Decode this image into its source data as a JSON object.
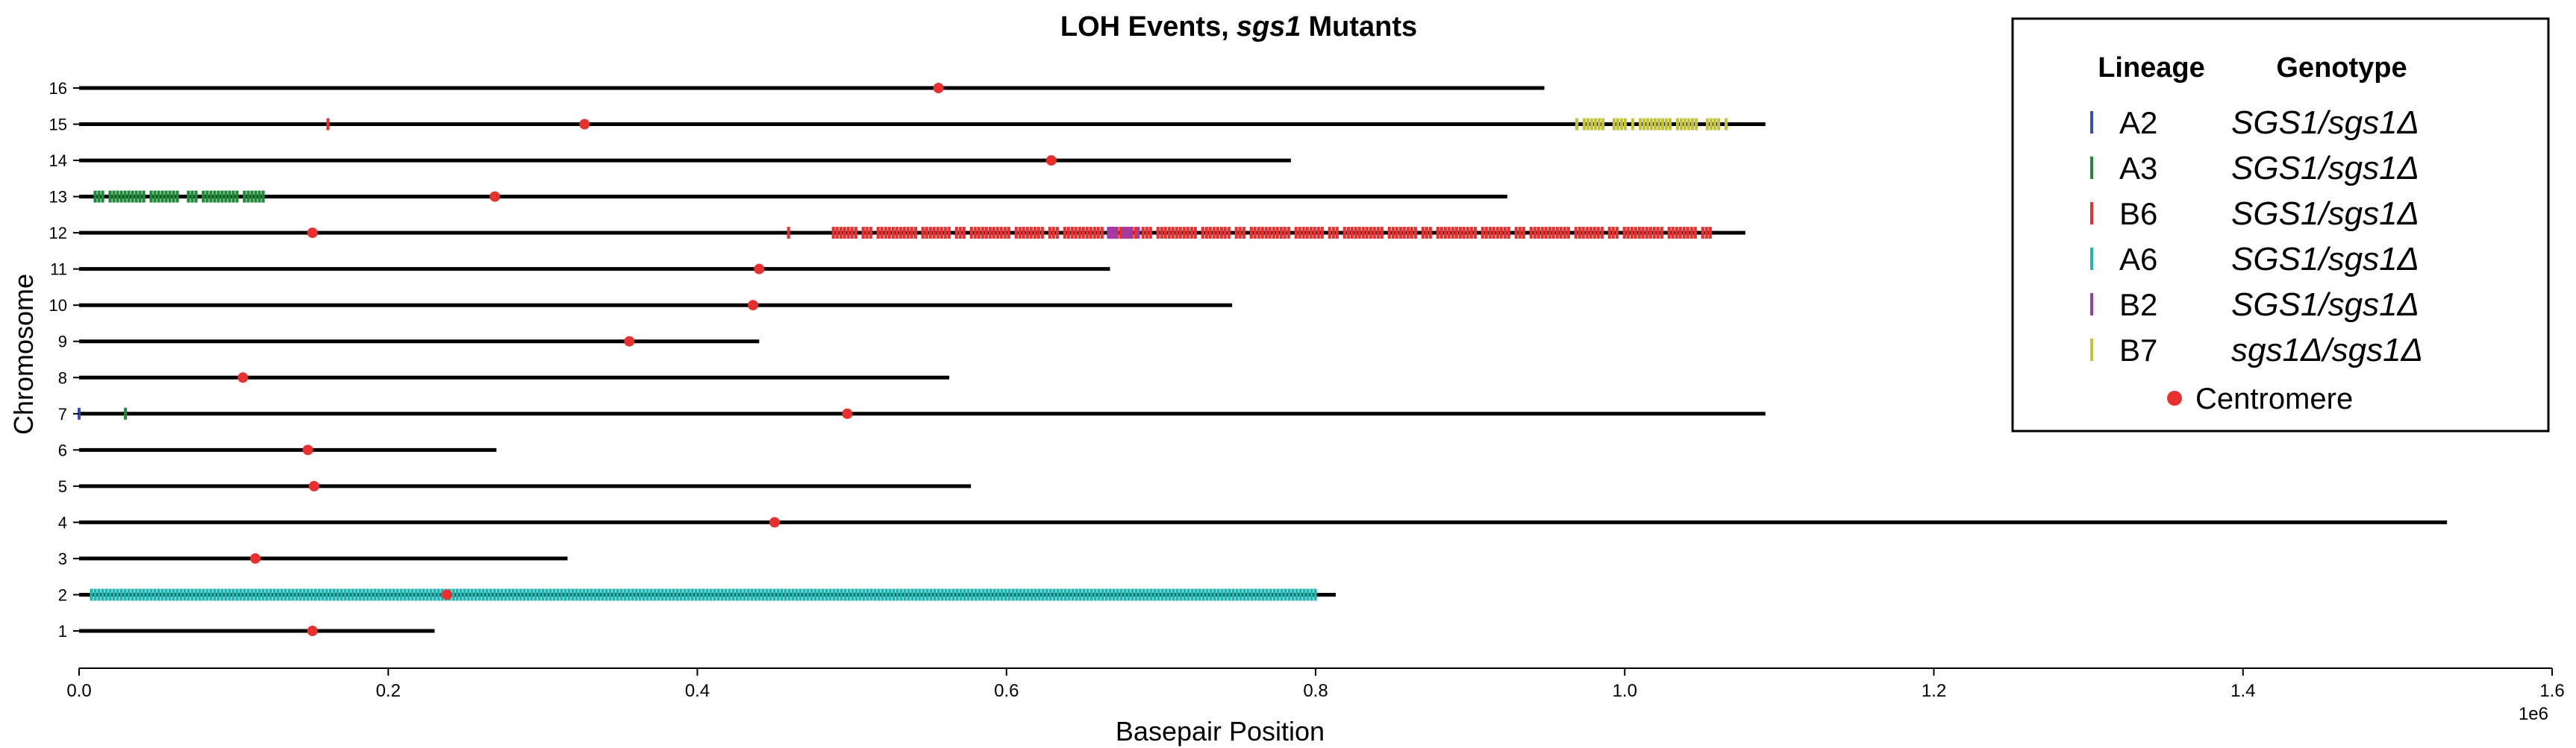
{
  "chart_data": {
    "type": "scatter",
    "title": "LOH Events,",
    "title_italic": "sgs1",
    "title_suffix": "Mutants",
    "xlabel": "Basepair Position",
    "ylabel": "Chromosome",
    "x_offset_label": "1e6",
    "xlim": [
      0,
      1600000
    ],
    "ylim": [
      0.3,
      16.7
    ],
    "x_ticks": [
      0,
      200000,
      400000,
      600000,
      800000,
      1000000,
      1200000,
      1400000,
      1600000
    ],
    "x_tick_labels": [
      "0.0",
      "0.2",
      "0.4",
      "0.6",
      "0.8",
      "1.0",
      "1.2",
      "1.4",
      "1.6"
    ],
    "y_ticks": [
      1,
      2,
      3,
      4,
      5,
      6,
      7,
      8,
      9,
      10,
      11,
      12,
      13,
      14,
      15,
      16
    ],
    "y_tick_labels": [
      "1",
      "2",
      "3",
      "4",
      "5",
      "6",
      "7",
      "8",
      "9",
      "10",
      "11",
      "12",
      "13",
      "14",
      "15",
      "16"
    ],
    "chromosome_lengths": [
      {
        "chrom": 1,
        "length": 230000
      },
      {
        "chrom": 2,
        "length": 813000
      },
      {
        "chrom": 3,
        "length": 316000
      },
      {
        "chrom": 4,
        "length": 1532000
      },
      {
        "chrom": 5,
        "length": 577000
      },
      {
        "chrom": 6,
        "length": 270000
      },
      {
        "chrom": 7,
        "length": 1091000
      },
      {
        "chrom": 8,
        "length": 563000
      },
      {
        "chrom": 9,
        "length": 440000
      },
      {
        "chrom": 10,
        "length": 746000
      },
      {
        "chrom": 11,
        "length": 667000
      },
      {
        "chrom": 12,
        "length": 1078000
      },
      {
        "chrom": 13,
        "length": 924000
      },
      {
        "chrom": 14,
        "length": 784000
      },
      {
        "chrom": 15,
        "length": 1091000
      },
      {
        "chrom": 16,
        "length": 948000
      }
    ],
    "centromeres": [
      {
        "chrom": 1,
        "x": 151000
      },
      {
        "chrom": 2,
        "x": 238000
      },
      {
        "chrom": 3,
        "x": 114000
      },
      {
        "chrom": 4,
        "x": 450000
      },
      {
        "chrom": 5,
        "x": 152000
      },
      {
        "chrom": 6,
        "x": 148000
      },
      {
        "chrom": 7,
        "x": 497000
      },
      {
        "chrom": 8,
        "x": 106000
      },
      {
        "chrom": 9,
        "x": 356000
      },
      {
        "chrom": 10,
        "x": 436000
      },
      {
        "chrom": 11,
        "x": 440000
      },
      {
        "chrom": 12,
        "x": 151000
      },
      {
        "chrom": 13,
        "x": 269000
      },
      {
        "chrom": 14,
        "x": 629000
      },
      {
        "chrom": 15,
        "x": 327000
      },
      {
        "chrom": 16,
        "x": 556000
      }
    ],
    "lineages": [
      {
        "lineage": "A2",
        "genotype": "SGS1/sgs1Δ",
        "color": "#3b4cc0"
      },
      {
        "lineage": "A3",
        "genotype": "SGS1/sgs1Δ",
        "color": "#1f8a3a"
      },
      {
        "lineage": "B6",
        "genotype": "SGS1/sgs1Δ",
        "color": "#e8302f"
      },
      {
        "lineage": "A6",
        "genotype": "SGS1/sgs1Δ",
        "color": "#1fb6b1"
      },
      {
        "lineage": "B2",
        "genotype": "SGS1/sgs1Δ",
        "color": "#9a3ab8"
      },
      {
        "lineage": "B7",
        "genotype": "sgs1Δ/sgs1Δ",
        "color": "#c2c338"
      }
    ],
    "loh_events": [
      {
        "lineage": "A3",
        "chrom": 13,
        "start": 8000,
        "end": 120000
      },
      {
        "lineage": "A3",
        "chrom": 7,
        "start": 30000,
        "end": 33000
      },
      {
        "lineage": "A2",
        "chrom": 7,
        "start": 0,
        "end": 3000
      },
      {
        "lineage": "B6",
        "chrom": 12,
        "start": 488000,
        "end": 1057000
      },
      {
        "lineage": "B6",
        "chrom": 12,
        "start": 459000,
        "end": 462000
      },
      {
        "lineage": "B6",
        "chrom": 15,
        "start": 161000,
        "end": 164000
      },
      {
        "lineage": "A6",
        "chrom": 2,
        "start": 8000,
        "end": 800000
      },
      {
        "lineage": "B2",
        "chrom": 12,
        "start": 666000,
        "end": 686000
      },
      {
        "lineage": "B7",
        "chrom": 15,
        "start": 969000,
        "end": 1069000
      }
    ],
    "legend": {
      "position": "top-right",
      "header_lineage": "Lineage",
      "header_genotype": "Genotype",
      "centromere_label": "Centromere",
      "centromere_color": "#e8302f"
    },
    "grid": false
  }
}
